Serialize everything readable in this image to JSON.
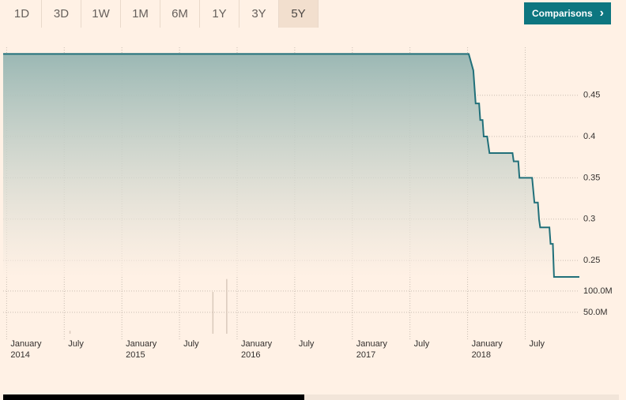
{
  "ranges": [
    "1D",
    "3D",
    "1W",
    "1M",
    "6M",
    "1Y",
    "3Y",
    "5Y"
  ],
  "selected_range": 7,
  "comparisons": "Comparisons",
  "chart_data": {
    "type": "line",
    "x": [
      2013.97,
      2018.01,
      2018.05,
      2018.07,
      2018.1,
      2018.11,
      2018.13,
      2018.14,
      2018.17,
      2018.19,
      2018.39,
      2018.4,
      2018.44,
      2018.45,
      2018.56,
      2018.58,
      2018.61,
      2018.62,
      2018.63,
      2018.71,
      2018.72,
      2018.74,
      2018.75,
      2018.97
    ],
    "series": [
      {
        "color": "#21707a",
        "values": [
          0.5,
          0.5,
          0.48,
          0.44,
          0.44,
          0.42,
          0.42,
          0.4,
          0.4,
          0.38,
          0.38,
          0.37,
          0.37,
          0.35,
          0.35,
          0.32,
          0.32,
          0.3,
          0.29,
          0.29,
          0.27,
          0.27,
          0.23,
          0.23
        ]
      }
    ],
    "xlim": [
      2013.97,
      2018.97
    ],
    "xticks": [
      {
        "value": 2014,
        "label": "January 2014"
      },
      {
        "value": 2014.5,
        "label": "July"
      },
      {
        "value": 2015,
        "label": "January 2015"
      },
      {
        "value": 2015.5,
        "label": "July"
      },
      {
        "value": 2016,
        "label": "January 2016"
      },
      {
        "value": 2016.5,
        "label": "July"
      },
      {
        "value": 2017,
        "label": "January 2017"
      },
      {
        "value": 2017.5,
        "label": "July"
      },
      {
        "value": 2018,
        "label": "January 2018"
      },
      {
        "value": 2018.5,
        "label": "July"
      }
    ],
    "ylim": [
      0.23,
      0.508
    ],
    "yticks": [
      0.25,
      0.3,
      0.35,
      0.4,
      0.45
    ],
    "grid": true,
    "volume": {
      "color": "#d9c9bb",
      "x": [
        2014.55,
        2015.79,
        2015.91
      ],
      "values": [
        7000000,
        98000000,
        128000000
      ],
      "ylim": [
        0,
        133000000
      ],
      "yticks": [
        {
          "value": 50000000,
          "label": "50.0M"
        },
        {
          "value": 100000000,
          "label": "100.0M"
        }
      ]
    }
  }
}
